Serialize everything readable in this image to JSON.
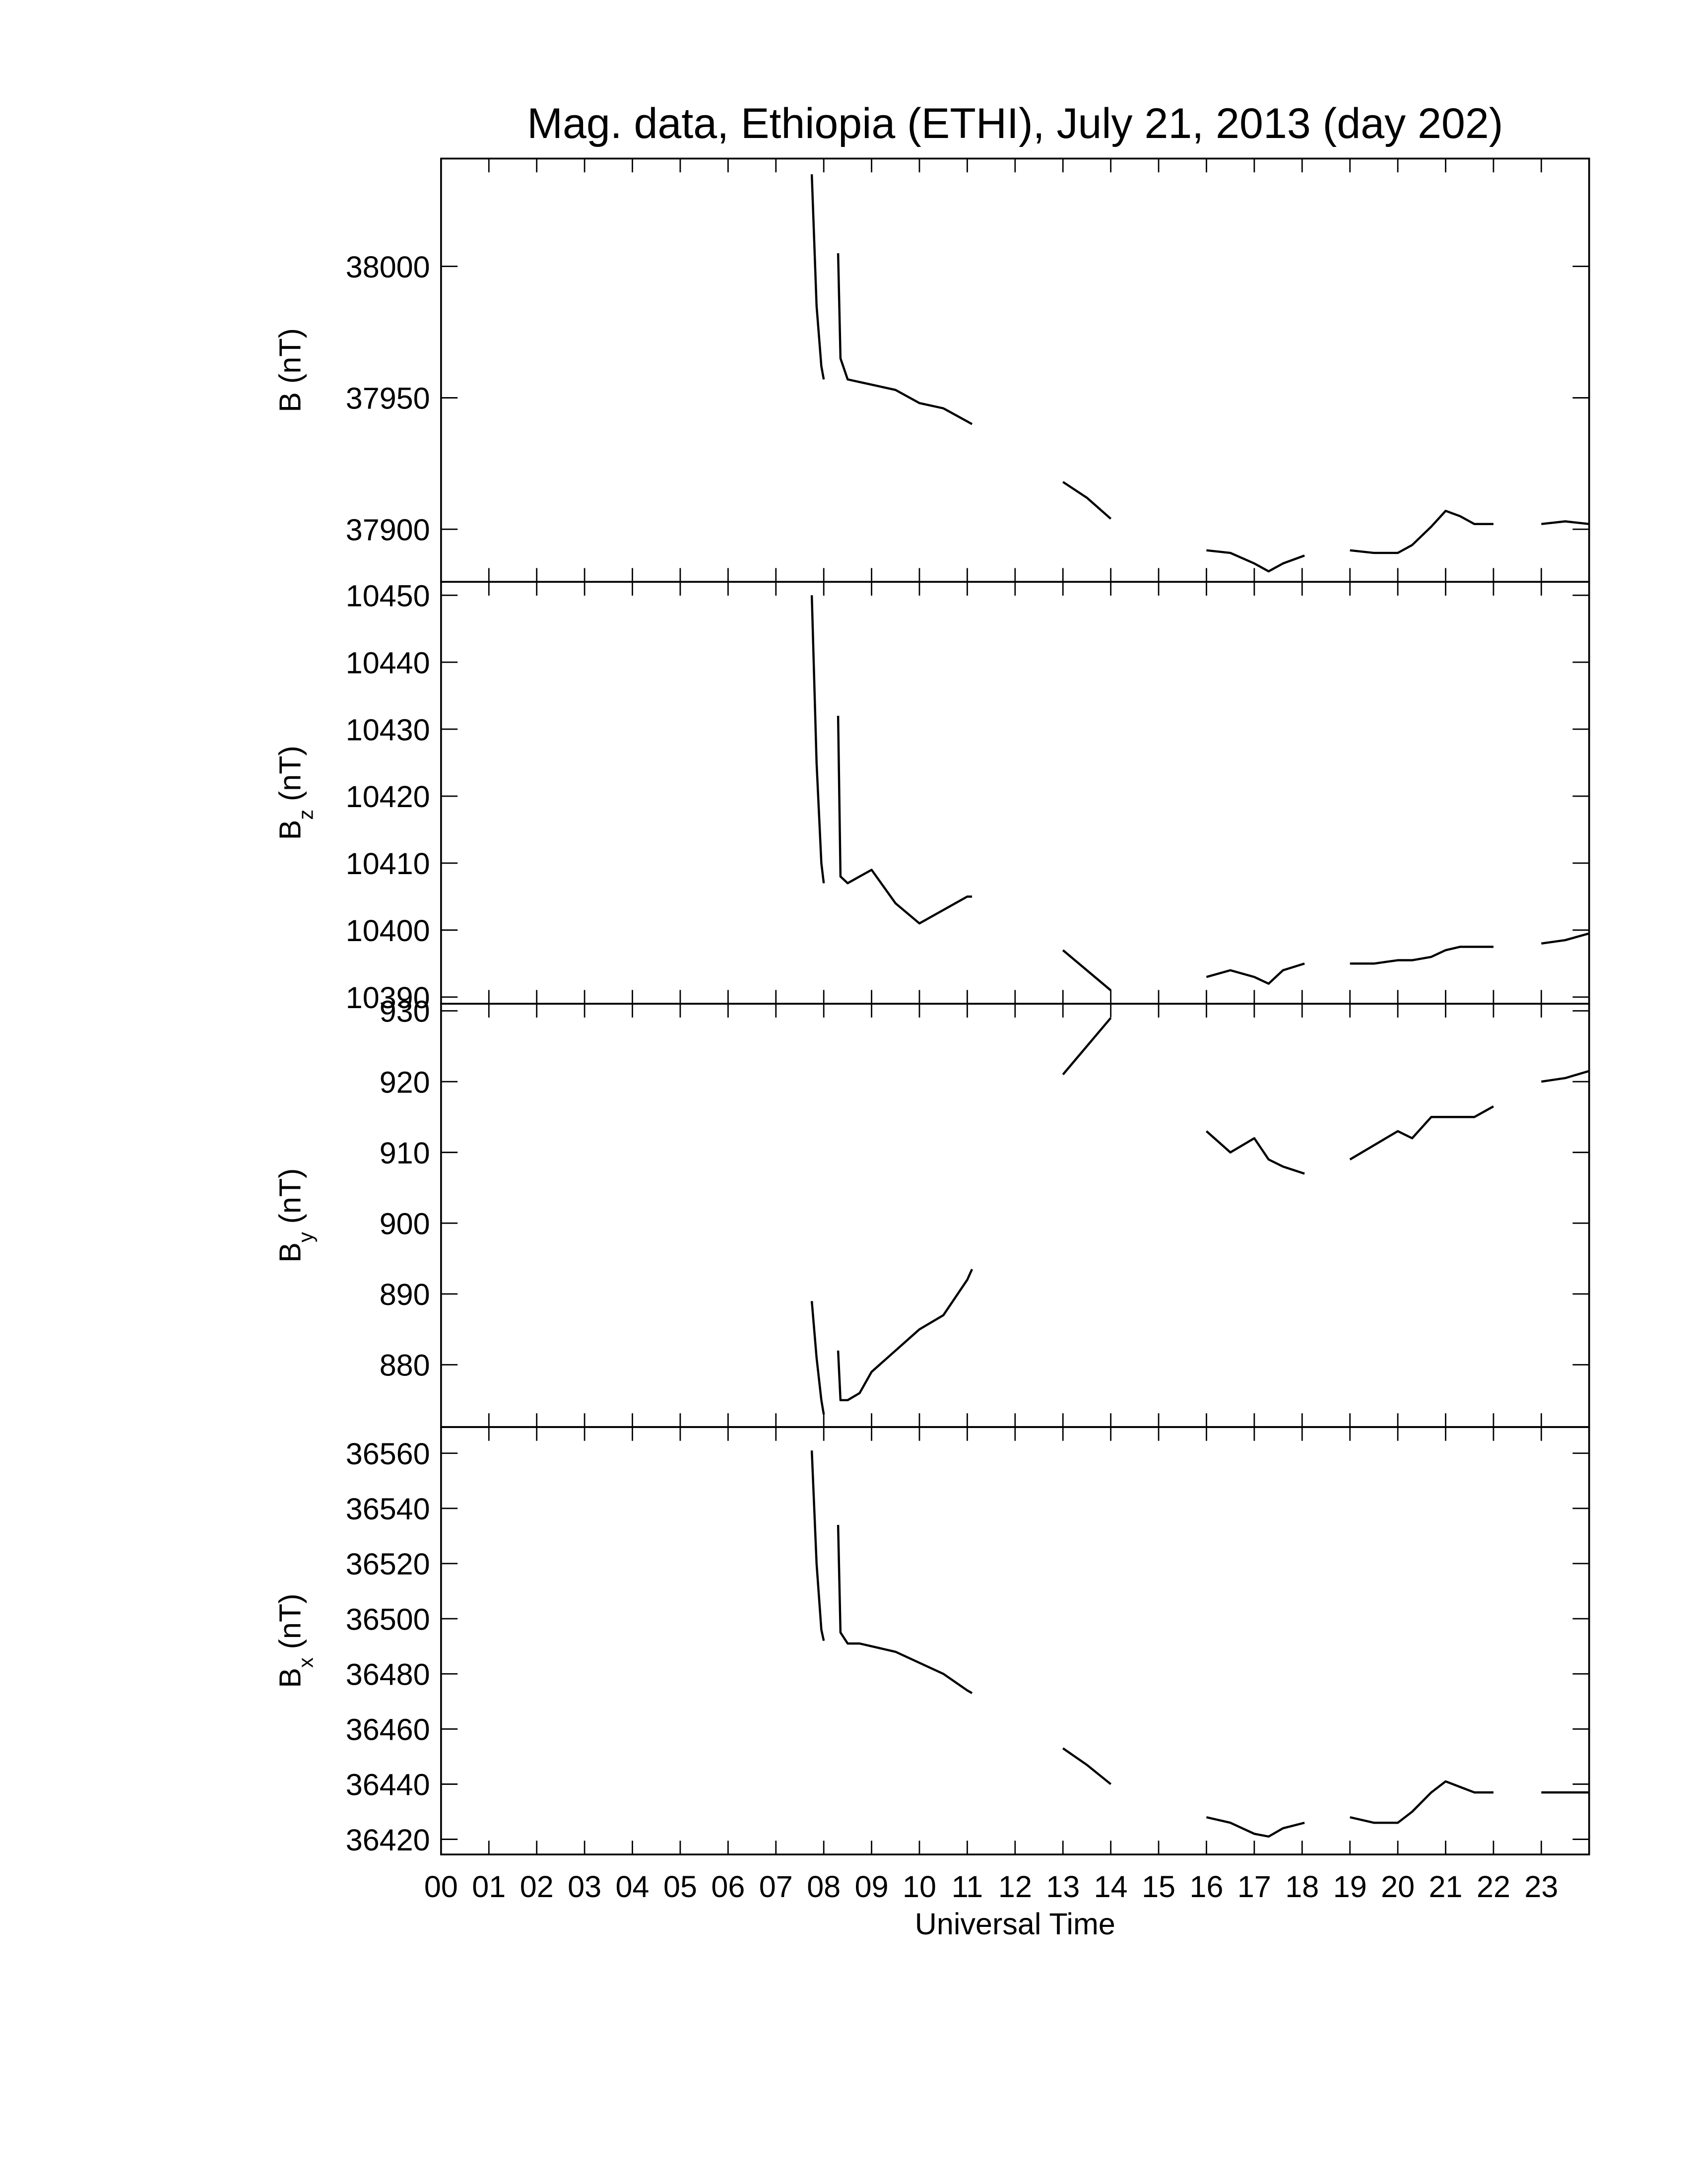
{
  "chart_data": [
    {
      "type": "line",
      "title": "Mag. data, Ethiopia (ETHI), July 21, 2013 (day 202)",
      "ylabel": "B (nT)",
      "color": "#000000",
      "x": [
        7.75,
        7.85,
        7.95,
        8.0,
        null,
        8.3,
        8.35,
        8.5,
        8.75,
        9.0,
        9.5,
        10.0,
        10.5,
        11.0,
        11.1,
        null,
        13.0,
        13.5,
        14.0,
        null,
        16.0,
        16.5,
        17.0,
        17.3,
        17.6,
        18.05,
        null,
        19.0,
        19.5,
        20.0,
        20.3,
        20.7,
        21.0,
        21.3,
        21.6,
        22.0,
        null,
        23.0,
        23.5,
        24.0
      ],
      "values": [
        38035,
        37985,
        37962,
        37957,
        null,
        38005,
        37965,
        37957,
        37956,
        37955,
        37953,
        37948,
        37946,
        37941,
        37940,
        null,
        37918,
        37912,
        37904,
        null,
        37892,
        37891,
        37887,
        37884,
        37887,
        37890,
        null,
        37892,
        37891,
        37891,
        37894,
        37901,
        37907,
        37905,
        37902,
        37902,
        null,
        37902,
        37903,
        37902
      ],
      "xlim": [
        0,
        24
      ],
      "ylim": [
        37880,
        38041
      ],
      "yticks": [
        37900,
        37950,
        38000
      ]
    },
    {
      "type": "line",
      "ylabel": {
        "main": "B",
        "sub": "z",
        "unit": "(nT)"
      },
      "color": "#000000",
      "x": [
        7.75,
        7.85,
        7.95,
        8.0,
        null,
        8.3,
        8.35,
        8.5,
        8.75,
        9.0,
        9.5,
        10.0,
        10.5,
        11.0,
        11.1,
        null,
        13.0,
        13.5,
        14.0,
        null,
        16.0,
        16.5,
        17.0,
        17.3,
        17.6,
        18.05,
        null,
        19.0,
        19.5,
        20.0,
        20.3,
        20.7,
        21.0,
        21.3,
        21.6,
        22.0,
        null,
        23.0,
        23.5,
        24.0
      ],
      "values": [
        10450,
        10425,
        10410,
        10407,
        null,
        10432,
        10408,
        10407,
        10408,
        10409,
        10404,
        10401,
        10403,
        10405,
        10405,
        null,
        10397,
        10394,
        10391,
        null,
        10393,
        10394,
        10393,
        10392,
        10394,
        10395,
        null,
        10395,
        10395,
        10395.5,
        10395.5,
        10396,
        10397,
        10397.5,
        10397.5,
        10397.5,
        null,
        10398,
        10398.5,
        10399.5
      ],
      "xlim": [
        0,
        24
      ],
      "ylim": [
        10389,
        10452
      ],
      "yticks": [
        10390,
        10400,
        10410,
        10420,
        10430,
        10440,
        10450
      ]
    },
    {
      "type": "line",
      "ylabel": {
        "main": "B",
        "sub": "y",
        "unit": "(nT)"
      },
      "color": "#000000",
      "x": [
        7.75,
        7.85,
        7.95,
        8.0,
        null,
        8.3,
        8.35,
        8.5,
        8.75,
        9.0,
        9.5,
        10.0,
        10.5,
        11.0,
        11.1,
        null,
        13.0,
        13.5,
        14.0,
        null,
        16.0,
        16.5,
        17.0,
        17.3,
        17.6,
        18.05,
        null,
        19.0,
        19.5,
        20.0,
        20.3,
        20.7,
        21.0,
        21.3,
        21.6,
        22.0,
        null,
        23.0,
        23.5,
        24.0
      ],
      "values": [
        889,
        881,
        875,
        873,
        null,
        882,
        875,
        875,
        876,
        879,
        882,
        885,
        887,
        892,
        893.5,
        null,
        921,
        925,
        929,
        null,
        913,
        910,
        912,
        909,
        908,
        907,
        null,
        909,
        911,
        913,
        912,
        915,
        915,
        915,
        915,
        916.5,
        null,
        920,
        920.5,
        921.5
      ],
      "xlim": [
        0,
        24
      ],
      "ylim": [
        871.2,
        931
      ],
      "yticks": [
        880,
        890,
        900,
        910,
        920,
        930
      ]
    },
    {
      "type": "line",
      "ylabel": {
        "main": "B",
        "sub": "x",
        "unit": "(nT)"
      },
      "xlabel": "Universal Time",
      "color": "#000000",
      "x": [
        7.75,
        7.85,
        7.95,
        8.0,
        null,
        8.3,
        8.35,
        8.5,
        8.75,
        9.0,
        9.5,
        10.0,
        10.5,
        11.0,
        11.1,
        null,
        13.0,
        13.5,
        14.0,
        null,
        16.0,
        16.5,
        17.0,
        17.3,
        17.6,
        18.05,
        null,
        19.0,
        19.5,
        20.0,
        20.3,
        20.7,
        21.0,
        21.3,
        21.6,
        22.0,
        null,
        23.0,
        23.5,
        24.0
      ],
      "values": [
        36561,
        36520,
        36496,
        36492,
        null,
        36534,
        36495,
        36491,
        36491,
        36490,
        36488,
        36484,
        36480,
        36474,
        36473,
        null,
        36453,
        36447,
        36440,
        null,
        36428,
        36426,
        36422,
        36421,
        36424,
        36426,
        null,
        36428,
        36426,
        36426,
        36430,
        36437,
        36441,
        36439,
        36437,
        36437,
        null,
        36437,
        36437,
        36437
      ],
      "xlim": [
        0,
        24
      ],
      "ylim": [
        36414.5,
        36569.5
      ],
      "yticks": [
        36420,
        36440,
        36460,
        36480,
        36500,
        36520,
        36540,
        36560
      ],
      "xticks": [
        {
          "value": 0,
          "label": "00"
        },
        {
          "value": 1,
          "label": "01"
        },
        {
          "value": 2,
          "label": "02"
        },
        {
          "value": 3,
          "label": "03"
        },
        {
          "value": 4,
          "label": "04"
        },
        {
          "value": 5,
          "label": "05"
        },
        {
          "value": 6,
          "label": "06"
        },
        {
          "value": 7,
          "label": "07"
        },
        {
          "value": 8,
          "label": "08"
        },
        {
          "value": 9,
          "label": "09"
        },
        {
          "value": 10,
          "label": "10"
        },
        {
          "value": 11,
          "label": "11"
        },
        {
          "value": 12,
          "label": "12"
        },
        {
          "value": 13,
          "label": "13"
        },
        {
          "value": 14,
          "label": "14"
        },
        {
          "value": 15,
          "label": "15"
        },
        {
          "value": 16,
          "label": "16"
        },
        {
          "value": 17,
          "label": "17"
        },
        {
          "value": 18,
          "label": "18"
        },
        {
          "value": 19,
          "label": "19"
        },
        {
          "value": 20,
          "label": "20"
        },
        {
          "value": 21,
          "label": "21"
        },
        {
          "value": 22,
          "label": "22"
        },
        {
          "value": 23,
          "label": "23"
        }
      ]
    }
  ]
}
